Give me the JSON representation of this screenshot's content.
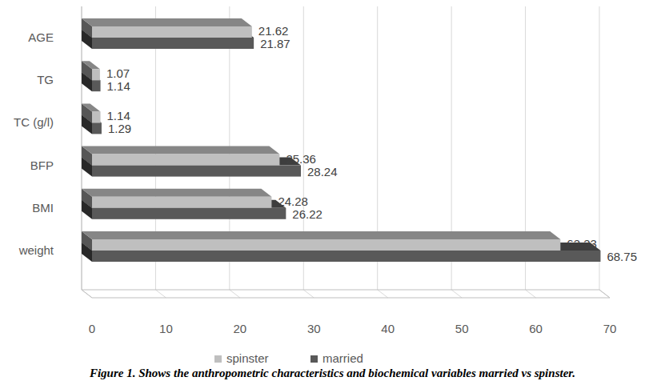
{
  "chart_data": {
    "type": "bar",
    "orientation": "horizontal",
    "caption": "Figure 1. Shows the anthropometric characteristics and biochemical variables married vs spinster.",
    "categories": [
      "weight",
      "BMI",
      "BFP",
      "TC (g/l)",
      "TG",
      "AGE"
    ],
    "series": [
      {
        "name": "spinster",
        "color": "#bfbfbf",
        "values": [
          63.33,
          24.28,
          25.36,
          1.14,
          1.07,
          21.62
        ]
      },
      {
        "name": "married",
        "color": "#595959",
        "values": [
          68.75,
          26.22,
          28.24,
          1.29,
          1.14,
          21.87
        ]
      }
    ],
    "xlim": [
      0,
      70
    ],
    "xticks": [
      0,
      10,
      20,
      30,
      40,
      50,
      60,
      70
    ],
    "grid": true,
    "legend": "bottom",
    "data_labels": true
  }
}
